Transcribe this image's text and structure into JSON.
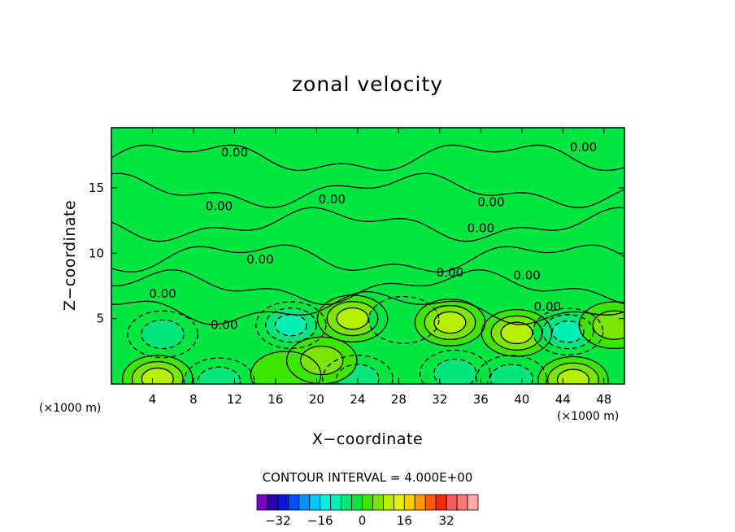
{
  "chart_data": {
    "type": "heatmap",
    "title": "zonal velocity",
    "xlabel": "X−coordinate",
    "ylabel": "Z−coordinate",
    "x_unit": "(×1000 m)",
    "y_unit": "(×1000 m)",
    "xlim": [
      0,
      50
    ],
    "ylim": [
      0,
      19.6
    ],
    "x_ticks": [
      4,
      8,
      12,
      16,
      20,
      24,
      28,
      32,
      36,
      40,
      44,
      48
    ],
    "y_ticks": [
      5,
      10,
      15
    ],
    "contour_interval_text": "CONTOUR INTERVAL = 4.000E+00",
    "contour_labels": [
      "0.00",
      "0.00",
      "0.00",
      "0.00",
      "0.00",
      "0.00",
      "0.00",
      "0.00",
      "0.00",
      "0.00",
      "0.00",
      "0.00"
    ],
    "background_level": 0,
    "features": [
      {
        "x": 5,
        "z": 3.8,
        "value": -4
      },
      {
        "x": 4.5,
        "z": 0.4,
        "value": 11
      },
      {
        "x": 10.5,
        "z": 0.2,
        "value": -5
      },
      {
        "x": 17.5,
        "z": 4.5,
        "value": -9
      },
      {
        "x": 17,
        "z": 0.7,
        "value": 3
      },
      {
        "x": 23.5,
        "z": 5.0,
        "value": 11
      },
      {
        "x": 24,
        "z": 0.4,
        "value": -5
      },
      {
        "x": 28.5,
        "z": 4.9,
        "value": -3
      },
      {
        "x": 33,
        "z": 4.7,
        "value": 10
      },
      {
        "x": 33.5,
        "z": 0.8,
        "value": -6
      },
      {
        "x": 39.5,
        "z": 3.9,
        "value": 11
      },
      {
        "x": 39,
        "z": 0.4,
        "value": -7
      },
      {
        "x": 44.5,
        "z": 4.0,
        "value": -8
      },
      {
        "x": 45,
        "z": 0.3,
        "value": 11
      },
      {
        "x": 20.5,
        "z": 1.8,
        "value": 4
      },
      {
        "x": 49,
        "z": 4.5,
        "value": 5
      }
    ],
    "colorbar": {
      "colors": [
        "#7a00c8",
        "#2800a8",
        "#0018d8",
        "#0050ff",
        "#0092ff",
        "#00c8ff",
        "#00f0e6",
        "#00f0b4",
        "#00e67a",
        "#00e640",
        "#3ce600",
        "#7ae600",
        "#b4f000",
        "#e6f000",
        "#ffcc00",
        "#ff9900",
        "#ff5a00",
        "#ff2800",
        "#ff5a5a",
        "#ff7878",
        "#ffaaaa"
      ],
      "tick_labels": [
        "−32",
        "−16",
        "0",
        "16",
        "32"
      ],
      "tick_values": [
        -32,
        -16,
        0,
        16,
        32
      ],
      "range": [
        -40,
        44
      ]
    }
  }
}
